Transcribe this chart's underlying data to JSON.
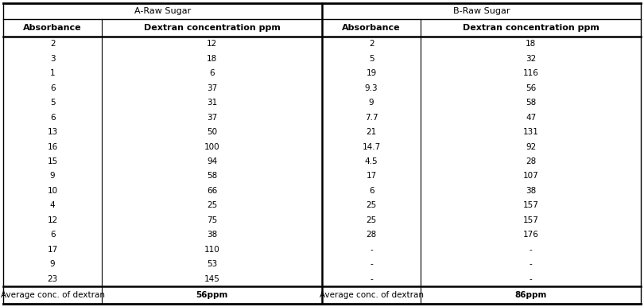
{
  "title_A": "A-Raw Sugar",
  "title_B": "B-Raw Sugar",
  "col_headers": [
    "Absorbance",
    "Dextran concentration ppm",
    "Absorbance",
    "Dextran concentration ppm"
  ],
  "rows_A": [
    [
      "2",
      "12"
    ],
    [
      "3",
      "18"
    ],
    [
      "1",
      "6"
    ],
    [
      "6",
      "37"
    ],
    [
      "5",
      "31"
    ],
    [
      "6",
      "37"
    ],
    [
      "13",
      "50"
    ],
    [
      "16",
      "100"
    ],
    [
      "15",
      "94"
    ],
    [
      "9",
      "58"
    ],
    [
      "10",
      "66"
    ],
    [
      "4",
      "25"
    ],
    [
      "12",
      "75"
    ],
    [
      "6",
      "38"
    ],
    [
      "17",
      "110"
    ],
    [
      "9",
      "53"
    ],
    [
      "23",
      "145"
    ]
  ],
  "rows_B": [
    [
      "2",
      "18"
    ],
    [
      "5",
      "32"
    ],
    [
      "19",
      "116"
    ],
    [
      "9.3",
      "56"
    ],
    [
      "9",
      "58"
    ],
    [
      "7.7",
      "47"
    ],
    [
      "21",
      "131"
    ],
    [
      "14.7",
      "92"
    ],
    [
      "4.5",
      "28"
    ],
    [
      "17",
      "107"
    ],
    [
      "6",
      "38"
    ],
    [
      "25",
      "157"
    ],
    [
      "25",
      "157"
    ],
    [
      "28",
      "176"
    ],
    [
      "-",
      "-"
    ],
    [
      "-",
      "-"
    ],
    [
      "-",
      "-"
    ]
  ],
  "footer_label": "Average conc. of dextran",
  "footer_A_value": "56ppm",
  "footer_B_value": "86ppm",
  "font_size": 7.5,
  "header_font_size": 8.0,
  "bg_color": "#ffffff",
  "text_color": "#000000",
  "line_color": "#000000"
}
